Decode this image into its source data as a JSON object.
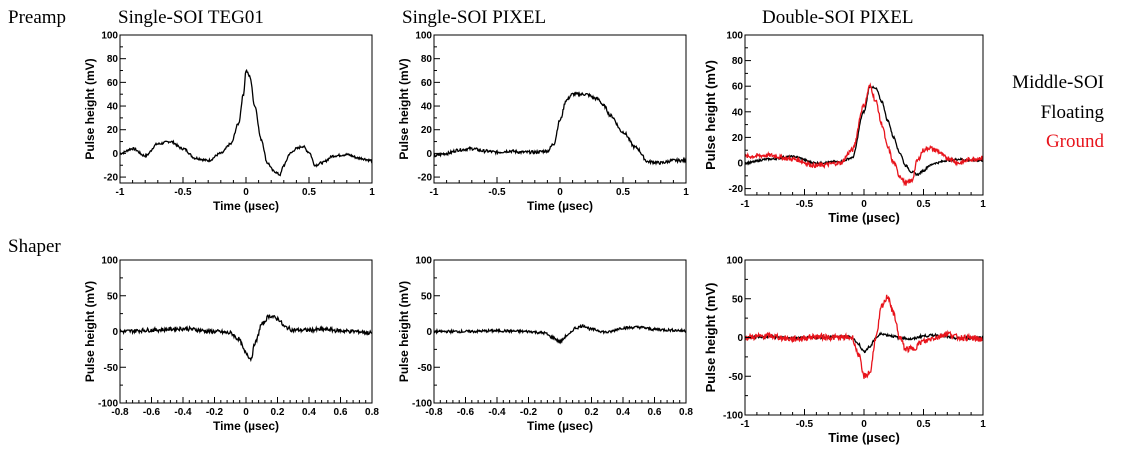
{
  "column_titles": [
    "Single-SOI TEG01",
    "Single-SOI PIXEL",
    "Double-SOI PIXEL"
  ],
  "row_labels": [
    "Preamp",
    "Shaper"
  ],
  "legend": {
    "title": "Middle-SOI",
    "items": [
      {
        "name": "Floating",
        "color": "#000000"
      },
      {
        "name": "Ground",
        "color": "#e8141c"
      }
    ]
  },
  "chart_data": [
    {
      "type": "line",
      "row": "Preamp",
      "column": "Single-SOI TEG01",
      "xlabel": "Time (µsec)",
      "ylabel": "Pulse height (mV)",
      "xlim": [
        -1,
        1
      ],
      "ylim": [
        -25,
        100
      ],
      "xticks": [
        -1,
        -0.5,
        0,
        0.5,
        1
      ],
      "xtick_labels": [
        "-1",
        "-0.5",
        "0",
        "0.5",
        "1"
      ],
      "yticks": [
        -20,
        0,
        20,
        40,
        60,
        80,
        100
      ],
      "ytick_labels": [
        "-20",
        "0",
        "20",
        "40",
        "60",
        "80",
        "100"
      ],
      "series": [
        {
          "color": "#000000",
          "noise": 1.2,
          "x": [
            -1,
            -0.9,
            -0.8,
            -0.7,
            -0.6,
            -0.5,
            -0.4,
            -0.3,
            -0.2,
            -0.12,
            -0.06,
            -0.02,
            0,
            0.03,
            0.07,
            0.12,
            0.17,
            0.22,
            0.27,
            0.3,
            0.35,
            0.4,
            0.45,
            0.5,
            0.55,
            0.6,
            0.7,
            0.8,
            0.9,
            1
          ],
          "y": [
            0,
            4,
            -2,
            8,
            10,
            4,
            -4,
            -6,
            0,
            8,
            25,
            50,
            70,
            65,
            40,
            12,
            -8,
            -15,
            -18,
            -10,
            0,
            4,
            6,
            1,
            -10,
            -8,
            -2,
            -1,
            -4,
            -6
          ]
        }
      ]
    },
    {
      "type": "line",
      "row": "Preamp",
      "column": "Single-SOI PIXEL",
      "xlabel": "Time (µsec)",
      "ylabel": "Pulse height (mV)",
      "xlim": [
        -1,
        1
      ],
      "ylim": [
        -25,
        100
      ],
      "xticks": [
        -1,
        -0.5,
        0,
        0.5,
        1
      ],
      "xtick_labels": [
        "-1",
        "-0.5",
        "0",
        "0.5",
        "1"
      ],
      "yticks": [
        -20,
        0,
        20,
        40,
        60,
        80,
        100
      ],
      "ytick_labels": [
        "-20",
        "0",
        "20",
        "40",
        "60",
        "80",
        "100"
      ],
      "series": [
        {
          "color": "#000000",
          "noise": 1.5,
          "x": [
            -1,
            -0.9,
            -0.8,
            -0.7,
            -0.6,
            -0.5,
            -0.4,
            -0.3,
            -0.2,
            -0.1,
            -0.05,
            0,
            0.05,
            0.1,
            0.2,
            0.3,
            0.35,
            0.4,
            0.5,
            0.6,
            0.7,
            0.8,
            0.9,
            1
          ],
          "y": [
            -2,
            0,
            3,
            4,
            2,
            1,
            2,
            1,
            1,
            2,
            8,
            28,
            45,
            50,
            50,
            46,
            40,
            32,
            18,
            5,
            -7,
            -8,
            -6,
            -6
          ]
        }
      ]
    },
    {
      "type": "line",
      "row": "Preamp",
      "column": "Double-SOI PIXEL",
      "xlabel": "Time (µsec)",
      "ylabel": "Pulse height (mV)",
      "xlim": [
        -1,
        1
      ],
      "ylim": [
        -25,
        100
      ],
      "xticks": [
        -1,
        -0.5,
        0,
        0.5,
        1
      ],
      "xtick_labels": [
        "-1",
        "-0.5",
        "0",
        "0.5",
        "1"
      ],
      "yticks": [
        -20,
        0,
        20,
        40,
        60,
        80,
        100
      ],
      "ytick_labels": [
        "-20",
        "0",
        "20",
        "40",
        "60",
        "80",
        "100"
      ],
      "series": [
        {
          "name": "Floating",
          "color": "#000000",
          "noise": 1.0,
          "x": [
            -1,
            -0.8,
            -0.6,
            -0.4,
            -0.2,
            -0.1,
            0,
            0.05,
            0.1,
            0.15,
            0.2,
            0.25,
            0.3,
            0.35,
            0.4,
            0.45,
            0.5,
            0.55,
            0.6,
            0.7,
            0.8,
            0.9,
            1
          ],
          "y": [
            0,
            3,
            5,
            0,
            1,
            4,
            40,
            60,
            58,
            48,
            33,
            20,
            8,
            -2,
            -7,
            -9,
            -6,
            -2,
            0,
            2,
            3,
            2,
            2
          ]
        },
        {
          "name": "Ground",
          "color": "#e8141c",
          "noise": 2.2,
          "x": [
            -1,
            -0.8,
            -0.6,
            -0.4,
            -0.2,
            -0.1,
            0,
            0.05,
            0.1,
            0.15,
            0.2,
            0.25,
            0.3,
            0.35,
            0.4,
            0.45,
            0.5,
            0.55,
            0.6,
            0.7,
            0.8,
            0.9,
            1
          ],
          "y": [
            5,
            6,
            3,
            -2,
            0,
            10,
            45,
            60,
            48,
            30,
            12,
            0,
            -10,
            -16,
            -14,
            2,
            10,
            12,
            10,
            4,
            0,
            3,
            4
          ]
        }
      ]
    },
    {
      "type": "line",
      "row": "Shaper",
      "column": "Single-SOI TEG01",
      "xlabel": "Time (µsec)",
      "ylabel": "Pulse height (mV)",
      "xlim": [
        -0.8,
        0.8
      ],
      "ylim": [
        -100,
        100
      ],
      "xticks": [
        -0.8,
        -0.6,
        -0.4,
        -0.2,
        0,
        0.2,
        0.4,
        0.6,
        0.8
      ],
      "xtick_labels": [
        "-0.8",
        "-0.6",
        "-0.4",
        "-0.2",
        "0",
        "0.2",
        "0.4",
        "0.6",
        "0.8"
      ],
      "yticks": [
        -100,
        -50,
        0,
        50,
        100
      ],
      "ytick_labels": [
        "-100",
        "-50",
        "0",
        "50",
        "100"
      ],
      "series": [
        {
          "color": "#000000",
          "noise": 2.0,
          "x": [
            -0.8,
            -0.6,
            -0.4,
            -0.2,
            -0.1,
            -0.05,
            0,
            0.03,
            0.06,
            0.1,
            0.15,
            0.2,
            0.25,
            0.3,
            0.4,
            0.5,
            0.6,
            0.7,
            0.8
          ],
          "y": [
            0,
            2,
            4,
            0,
            -2,
            -10,
            -30,
            -38,
            -15,
            10,
            22,
            18,
            6,
            2,
            2,
            3,
            1,
            0,
            -2
          ]
        }
      ]
    },
    {
      "type": "line",
      "row": "Shaper",
      "column": "Single-SOI PIXEL",
      "xlabel": "Time (µsec)",
      "ylabel": "Pulse height (mV)",
      "xlim": [
        -0.8,
        0.8
      ],
      "ylim": [
        -100,
        100
      ],
      "xticks": [
        -0.8,
        -0.6,
        -0.4,
        -0.2,
        0,
        0.2,
        0.4,
        0.6,
        0.8
      ],
      "xtick_labels": [
        "-0.8",
        "-0.6",
        "-0.4",
        "-0.2",
        "0",
        "0.2",
        "0.4",
        "0.6",
        "0.8"
      ],
      "yticks": [
        -100,
        -50,
        0,
        50,
        100
      ],
      "ytick_labels": [
        "-100",
        "-50",
        "0",
        "50",
        "100"
      ],
      "series": [
        {
          "color": "#000000",
          "noise": 1.3,
          "x": [
            -0.8,
            -0.6,
            -0.4,
            -0.2,
            -0.1,
            -0.05,
            0,
            0.05,
            0.1,
            0.15,
            0.2,
            0.3,
            0.4,
            0.5,
            0.6,
            0.7,
            0.8
          ],
          "y": [
            0,
            0,
            1,
            0,
            -2,
            -8,
            -14,
            -5,
            5,
            8,
            3,
            -1,
            5,
            6,
            3,
            2,
            1
          ]
        }
      ]
    },
    {
      "type": "line",
      "row": "Shaper",
      "column": "Double-SOI PIXEL",
      "xlabel": "Time (µsec)",
      "ylabel": "Pulse height (mV)",
      "xlim": [
        -1,
        1
      ],
      "ylim": [
        -100,
        100
      ],
      "xticks": [
        -1,
        -0.5,
        0,
        0.5,
        1
      ],
      "xtick_labels": [
        "-1",
        "-0.5",
        "0",
        "0.5",
        "1"
      ],
      "yticks": [
        -100,
        -50,
        0,
        50,
        100
      ],
      "ytick_labels": [
        "-100",
        "-50",
        "0",
        "50",
        "100"
      ],
      "series": [
        {
          "name": "Floating",
          "color": "#000000",
          "noise": 1.2,
          "x": [
            -1,
            -0.8,
            -0.6,
            -0.4,
            -0.2,
            -0.1,
            -0.05,
            0,
            0.05,
            0.1,
            0.15,
            0.2,
            0.3,
            0.4,
            0.5,
            0.6,
            0.8,
            1
          ],
          "y": [
            0,
            1,
            -1,
            0,
            1,
            0,
            -8,
            -18,
            -12,
            0,
            5,
            3,
            0,
            -2,
            2,
            3,
            -1,
            0
          ]
        },
        {
          "name": "Ground",
          "color": "#e8141c",
          "noise": 3.0,
          "x": [
            -1,
            -0.8,
            -0.6,
            -0.4,
            -0.2,
            -0.1,
            -0.05,
            0,
            0.05,
            0.1,
            0.15,
            0.2,
            0.25,
            0.3,
            0.35,
            0.4,
            0.5,
            0.6,
            0.7,
            0.8,
            1
          ],
          "y": [
            0,
            2,
            -2,
            1,
            0,
            0,
            -20,
            -50,
            -45,
            0,
            40,
            53,
            30,
            0,
            -15,
            -15,
            -5,
            0,
            5,
            0,
            -2
          ]
        }
      ]
    }
  ]
}
